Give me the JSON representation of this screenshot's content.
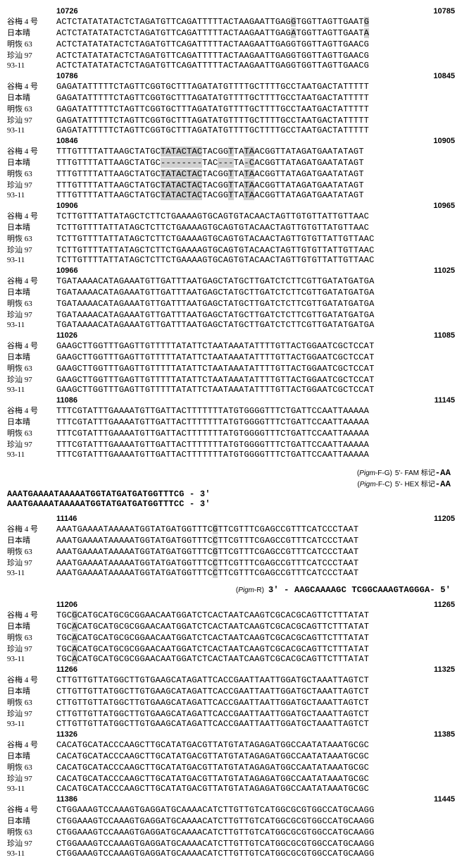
{
  "labels": [
    "谷梅 4 号",
    "日本晴",
    "明恢 63",
    "珍汕 97",
    "93-11"
  ],
  "blocks": [
    {
      "start": "10726",
      "end": "10785",
      "rows": [
        [
          {
            "t": "ACTCTATATATACTCTAGATGTTCAGATTTTTACTAAGAATTGAG"
          },
          {
            "t": "G",
            "hl": true
          },
          {
            "t": "TGGTTAGTTGAAT"
          },
          {
            "t": "G",
            "hl": true
          }
        ],
        [
          {
            "t": "ACTCTATATATACTCTAGATGTTCAGATTTTTACTAAGAATTGAG"
          },
          {
            "t": "A",
            "hl": true
          },
          {
            "t": "TGGTTAGTTGAAT"
          },
          {
            "t": "A",
            "hl": true
          }
        ],
        [
          {
            "t": "ACTCTATATATACTCTAGATGTTCAGATTTTTACTAAGAATTGAGGTGGTTAGTTGAACG"
          }
        ],
        [
          {
            "t": "ACTCTATATATACTCTAGATGTTCAGATTTTTACTAAGAATTGAGGTGGTTAGTTGAACG"
          }
        ],
        [
          {
            "t": "ACTCTATATATACTCTAGATGTTCAGATTTTTACTAAGAATTGAGGTGGTTAGTTGAACG"
          }
        ]
      ]
    },
    {
      "start": "10786",
      "end": "10845",
      "rows": [
        [
          {
            "t": "GAGATATTTTTCTAGTTCGGTGCTTTAGATATGTTTTGCTTTTGCCTAATGACTATTTTT"
          }
        ],
        [
          {
            "t": "GAGATATTTTTCTAGTTCGGTGCTTTAGATATGTTTTGCTTTTGCCTAATGACTATTTTT"
          }
        ],
        [
          {
            "t": "GAGATATTTTTCTAGTTCGGTGCTTTAGATATGTTTTGCTTTTGCCTAATGACTATTTTT"
          }
        ],
        [
          {
            "t": "GAGATATTTTTCTAGTTCGGTGCTTTAGATATGTTTTGCTTTTGCCTAATGACTATTTTT"
          }
        ],
        [
          {
            "t": "GAGATATTTTTCTAGTTCGGTGCTTTAGATATGTTTTGCTTTTGCCTAATGACTATTTTT"
          }
        ]
      ]
    },
    {
      "start": "10846",
      "end": "10905",
      "rows": [
        [
          {
            "t": "TTTGTTTTATTAAGCTATGC"
          },
          {
            "t": "TATACTAC",
            "hl": true
          },
          {
            "t": "TACGG"
          },
          {
            "t": "T",
            "hl": true
          },
          {
            "t": "TA"
          },
          {
            "t": "TA",
            "hl": true
          },
          {
            "t": "ACGGTTATAGATGAATATAGT"
          }
        ],
        [
          {
            "t": "TTTGTTTTATTAAGCTATGC"
          },
          {
            "t": "--------",
            "hl": true
          },
          {
            "t": "TAC"
          },
          {
            "t": "---",
            "hl": true
          },
          {
            "t": "TA"
          },
          {
            "t": "-C",
            "hl": true
          },
          {
            "t": "ACGGTTATAGATGAATATAGT"
          }
        ],
        [
          {
            "t": "TTTGTTTTATTAAGCTATGC"
          },
          {
            "t": "TATACTAC",
            "hl": true
          },
          {
            "t": "TACGG"
          },
          {
            "t": "T",
            "hl": true
          },
          {
            "t": "TA"
          },
          {
            "t": "TA",
            "hl": true
          },
          {
            "t": "ACGGTTATAGATGAATATAGT"
          }
        ],
        [
          {
            "t": "TTTGTTTTATTAAGCTATGC"
          },
          {
            "t": "TATACTAC",
            "hl": true
          },
          {
            "t": "TACGG"
          },
          {
            "t": "T",
            "hl": true
          },
          {
            "t": "TA"
          },
          {
            "t": "TA",
            "hl": true
          },
          {
            "t": "ACGGTTATAGATGAATATAGT"
          }
        ],
        [
          {
            "t": "TTTGTTTTATTAAGCTATGC"
          },
          {
            "t": "TATACTAC",
            "hl": true
          },
          {
            "t": "TACGG"
          },
          {
            "t": "T",
            "hl": true
          },
          {
            "t": "TA"
          },
          {
            "t": "TA",
            "hl": true
          },
          {
            "t": "ACGGTTATAGATGAATATAGT"
          }
        ]
      ]
    },
    {
      "start": "10906",
      "end": "10965",
      "rows": [
        [
          {
            "t": "TCTTGTTTATTATAGCTCTTCTGAAAAGTGCAGTGTACAACTAGTTGTGTTATTGTTAAC"
          }
        ],
        [
          {
            "t": "TCTTGTTTTATTATAGCTCTTCTGAAAAGTGCAGTGTACAACTAGTTGTGTTATGTTAAC"
          }
        ],
        [
          {
            "t": "TCTTGTTTTATTATAGCTCTTCTGAAAAGTGCAGTGTACAACTAGTTGTGTTATTGTTAAC"
          }
        ],
        [
          {
            "t": "TCTTGTTTTATTATAGCTCTTCTGAAAAGTGCAGTGTACAACTAGTTGTGTTATTGTTAAC"
          }
        ],
        [
          {
            "t": "TCTTGTTTTATTATAGCTCTTCTGAAAAGTGCAGTGTACAACTAGTTGTGTTATTGTTAAC"
          }
        ]
      ]
    },
    {
      "start": "10966",
      "end": "11025",
      "rows": [
        [
          {
            "t": "TGATAAAACATAGAAATGTTGATTTAATGAGCTATGCTTGATCTCTTCGTTGATATGATGA"
          }
        ],
        [
          {
            "t": "TGATAAAACATAGAAATGTTGATTTAATGAGCTATGCTTGATCTCTTCGTTGATATGATGA"
          }
        ],
        [
          {
            "t": "TGATAAAACATAGAAATGTTGATTTAATGAGCTATGCTTGATCTCTTCGTTGATATGATGA"
          }
        ],
        [
          {
            "t": "TGATAAAACATAGAAATGTTGATTTAATGAGCTATGCTTGATCTCTTCGTTGATATGATGA"
          }
        ],
        [
          {
            "t": "TGATAAAACATAGAAATGTTGATTTAATGAGCTATGCTTGATCTCTTCGTTGATATGATGA"
          }
        ]
      ]
    },
    {
      "start": "11026",
      "end": "11085",
      "rows": [
        [
          {
            "t": "GAAGCTTGGTTTGAGTTGTTTTTATATTCTAATAAATATTTTGTTACTGGAATCGCTCCAT"
          }
        ],
        [
          {
            "t": "GAAGCTTGGTTTGAGTTGTTTTTATATTCTAATAAATATTTTGTTACTGGAATCGCTCCAT"
          }
        ],
        [
          {
            "t": "GAAGCTTGGTTTGAGTTGTTTTTATATTCTAATAAATATTTTGTTACTGGAATCGCTCCAT"
          }
        ],
        [
          {
            "t": "GAAGCTTGGTTTGAGTTGTTTTTATATTCTAATAAATATTTTGTTACTGGAATCGCTCCAT"
          }
        ],
        [
          {
            "t": "GAAGCTTGGTTTGAGTTGTTTTTATATTCTAATAAATATTTTGTTACTGGAATCGCTCCAT"
          }
        ]
      ]
    },
    {
      "start": "11086",
      "end": "11145",
      "rows": [
        [
          {
            "t": "TTTCGTATTTGAAAATGTTGATTACTTTTTTTATGTGGGGTTTCTGATTCCAATTAAAAA"
          }
        ],
        [
          {
            "t": "TTTCGTATTTGAAAATGTTGATTACTTTTTTTATGTGGGGTTTCTGATTCCAATTAAAAA"
          }
        ],
        [
          {
            "t": "TTTCGTATTTGAAAATGTTGATTACTTTTTTTATGTGGGGTTTCTGATTCCAATTAAAAA"
          }
        ],
        [
          {
            "t": "TTTCGTATTTGAAAATGTTGATTACTTTTTTTATGTGGGGTTTCTGATTCCAATTAAAAA"
          }
        ],
        [
          {
            "t": "TTTCGTATTTGAAAATGTTGATTACTTTTTTTATGTGGGGTTTCTGATTCCAATTAAAAA"
          }
        ]
      ]
    }
  ],
  "primer_block_1": {
    "lines": [
      {
        "tag": "(<i>Pigm</i>-F-G)",
        "fluor": "5'- FAM 标记",
        "suffix": "-AA"
      },
      {
        "tag": "(<i>Pigm</i>-F-C)",
        "fluor": "5'- HEX 标记",
        "suffix": "-AA"
      }
    ],
    "seqs": [
      "AAATGAAAATAAAAATGGTATGATGATGGTTTCG - 3'",
      "AAATGAAAATAAAAATGGTATGATGATGGTTTCC - 3'"
    ]
  },
  "blocks2": [
    {
      "start": "11146",
      "end": "11205",
      "rows": [
        [
          {
            "t": "AAATGAAAATAAAAATGGTATGATGGTTTC"
          },
          {
            "t": "G",
            "hl": true
          },
          {
            "t": "TTCGTTTCGAGCCGTTTCATCCCTAAT"
          }
        ],
        [
          {
            "t": "AAATGAAAATAAAAATGGTATGATGGTTTC"
          },
          {
            "t": "C",
            "hl": true
          },
          {
            "t": "TTCGTTTCGAGCCGTTTCATCCCTAAT"
          }
        ],
        [
          {
            "t": "AAATGAAAATAAAAATGGTATGATGGTTTC"
          },
          {
            "t": "G",
            "hl": true
          },
          {
            "t": "TTCGTTTCGAGCCGTTTCATCCCTAAT"
          }
        ],
        [
          {
            "t": "AAATGAAAATAAAAATGGTATGATGGTTTC"
          },
          {
            "t": "C",
            "hl": true
          },
          {
            "t": "TTCGTTTCGAGCCGTTTCATCCCTAAT"
          }
        ],
        [
          {
            "t": "AAATGAAAATAAAAATGGTATGATGGTTTC"
          },
          {
            "t": "C",
            "hl": true
          },
          {
            "t": "TTCGTTTCGAGCCGTTTCATCCCTAAT"
          }
        ]
      ]
    }
  ],
  "primer_block_2": {
    "line": {
      "tag": "(<i>Pigm</i>-R)",
      "seq": "3' - AAGCAAAAGC TCGGCAAAGTAGGGA- 5'"
    }
  },
  "blocks3": [
    {
      "start": "11206",
      "end": "11265",
      "rows": [
        [
          {
            "t": "TGC"
          },
          {
            "t": "G",
            "hl": true
          },
          {
            "t": "CATGCATGCGCGGAACAATGGATCTCACTAATCAAGTCGCACGCAGTTCTTTATAT"
          }
        ],
        [
          {
            "t": "TGC"
          },
          {
            "t": "A",
            "hl": true
          },
          {
            "t": "CATGCATGCGCGGAACAATGGATCTCACTAATCAAGTCGCACGCAGTTCTTTATAT"
          }
        ],
        [
          {
            "t": "TGC"
          },
          {
            "t": "A",
            "hl": true
          },
          {
            "t": "CATGCATGCGCGGAACAATGGATCTCACTAATCAAGTCGCACGCAGTTCTTTATAT"
          }
        ],
        [
          {
            "t": "TGC"
          },
          {
            "t": "A",
            "hl": true
          },
          {
            "t": "CATGCATGCGCGGAACAATGGATCTCACTAATCAAGTCGCACGCAGTTCTTTATAT"
          }
        ],
        [
          {
            "t": "TGC"
          },
          {
            "t": "A",
            "hl": true
          },
          {
            "t": "CATGCATGCGCGGAACAATGGATCTCACTAATCAAGTCGCACGCAGTTCTTTATAT"
          }
        ]
      ]
    },
    {
      "start": "11266",
      "end": "11325",
      "rows": [
        [
          {
            "t": "CTTGTTGTTATGGCTTGTGAAGCATAGATTCACCGAATTAATTGGATGCTAAATTAGTCT"
          }
        ],
        [
          {
            "t": "CTTGTTGTTATGGCTTGTGAAGCATAGATTCACCGAATTAATTGGATGCTAAATTAGTCT"
          }
        ],
        [
          {
            "t": "CTTGTTGTTATGGCTTGTGAAGCATAGATTCACCGAATTAATTGGATGCTAAATTAGTCT"
          }
        ],
        [
          {
            "t": "CTTGTTGTTATGGCTTGTGAAGCATAGATTCACCGAATTAATTGGATGCTAAATTAGTCT"
          }
        ],
        [
          {
            "t": "CTTGTTGTTATGGCTTGTGAAGCATAGATTCACCGAATTAATTGGATGCTAAATTAGTCT"
          }
        ]
      ]
    },
    {
      "start": "11326",
      "end": "11385",
      "rows": [
        [
          {
            "t": "CACATGCATACCCAAGCTTGCATATGACGTTATGTATAGAGATGGCCAATATAAATGCGC"
          }
        ],
        [
          {
            "t": "CACATGCATACCCAAGCTTGCATATGACGTTATGTATAGAGATGGCCAATATAAATGCGC"
          }
        ],
        [
          {
            "t": "CACATGCATACCCAAGCTTGCATATGACGTTATGTATAGAGATGGCCAATATAAATGCGC"
          }
        ],
        [
          {
            "t": "CACATGCATACCCAAGCTTGCATATGACGTTATGTATAGAGATGGCCAATATAAATGCGC"
          }
        ],
        [
          {
            "t": "CACATGCATACCCAAGCTTGCATATGACGTTATGTATAGAGATGGCCAATATAAATGCGC"
          }
        ]
      ]
    },
    {
      "start": "11386",
      "end": "11445",
      "rows": [
        [
          {
            "t": "CTGGAAAGTCCAAAGTGAGGATGCAAAACATCTTGTTGTCATGGCGCGTGGCCATGCAAGG"
          }
        ],
        [
          {
            "t": "CTGGAAAGTCCAAAGTGAGGATGCAAAACATCTTGTTGTCATGGCGCGTGGCCATGCAAGG"
          }
        ],
        [
          {
            "t": "CTGGAAAGTCCAAAGTGAGGATGCAAAACATCTTGTTGTCATGGCGCGTGGCCATGCAAGG"
          }
        ],
        [
          {
            "t": "CTGGAAAGTCCAAAGTGAGGATGCAAAACATCTTGTTGTCATGGCGCGTGGCCATGCAAGG"
          }
        ],
        [
          {
            "t": "CTGGAAAGTCCAAAGTGAGGATGCAAAACATCTTGTTGTCATGGCGCGTGGCCATGCAAGG"
          }
        ]
      ]
    }
  ]
}
